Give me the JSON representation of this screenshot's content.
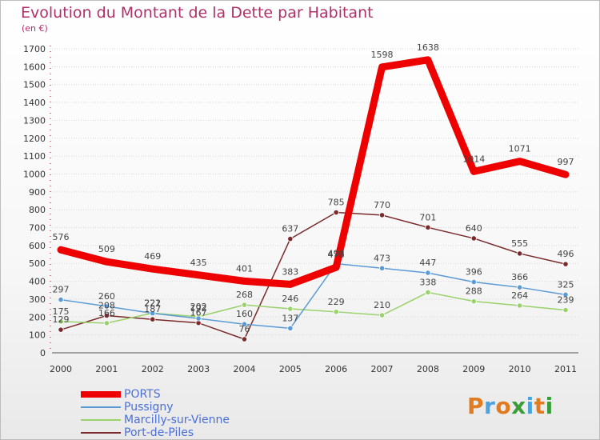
{
  "title": "Evolution du Montant de la Dette par Habitant",
  "subtitle": "(en €)",
  "logo": {
    "text": "Proxiti",
    "letter_colors": [
      "#e07b22",
      "#4aa3df",
      "#e07b22",
      "#3a9d3a",
      "#4aa3df",
      "#e07b22",
      "#3a9d3a"
    ]
  },
  "chart_data": {
    "type": "line",
    "title": "Evolution du Montant de la Dette par Habitant",
    "subtitle": "(en €)",
    "xlabel": "",
    "ylabel": "",
    "x": [
      "2000",
      "2001",
      "2002",
      "2003",
      "2004",
      "2005",
      "2006",
      "2007",
      "2008",
      "2009",
      "2010",
      "2011"
    ],
    "ylim": [
      0,
      1700
    ],
    "yticks": [
      0,
      100,
      200,
      300,
      400,
      500,
      600,
      700,
      800,
      900,
      1000,
      1100,
      1200,
      1300,
      1400,
      1500,
      1600,
      1700
    ],
    "grid": "horizontal",
    "legend": "bottom-left",
    "series": [
      {
        "name": "PORTS",
        "color": "#ee0000",
        "values": [
          576,
          509,
          469,
          435,
          401,
          383,
          478,
          1598,
          1638,
          1014,
          1071,
          997
        ]
      },
      {
        "name": "Pussigny",
        "color": "#5b9bd5",
        "values": [
          297,
          260,
          221,
          192,
          160,
          137,
          498,
          473,
          447,
          396,
          366,
          325
        ]
      },
      {
        "name": "Marcilly-sur-Vienne",
        "color": "#99d26a",
        "values": [
          175,
          166,
          222,
          202,
          268,
          246,
          229,
          210,
          338,
          288,
          264,
          239
        ]
      },
      {
        "name": "Port-de-Piles",
        "color": "#7a2a2a",
        "values": [
          129,
          208,
          187,
          167,
          76,
          637,
          785,
          770,
          701,
          640,
          555,
          496
        ]
      }
    ]
  }
}
